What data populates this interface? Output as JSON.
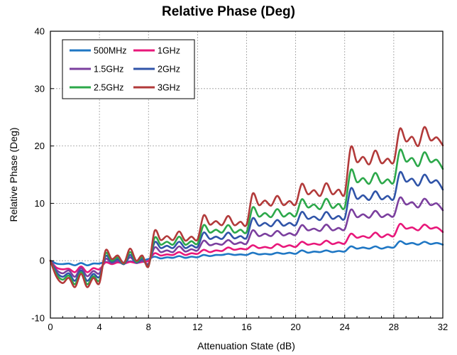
{
  "chart_data": {
    "type": "line",
    "title": "Relative Phase (Deg)",
    "xlabel": "Attenuation State (dB)",
    "ylabel": "Relative Phase (Deg)",
    "xlim": [
      0,
      32
    ],
    "ylim": [
      -10,
      40
    ],
    "xticks": [
      0,
      4,
      8,
      12,
      16,
      20,
      24,
      28,
      32
    ],
    "yticks": [
      -10,
      0,
      10,
      20,
      30,
      40
    ],
    "grid": true,
    "legend_position": "top-left",
    "x": [
      0,
      0.5,
      1,
      1.5,
      2,
      2.5,
      3,
      3.5,
      4,
      4.5,
      5,
      5.5,
      6,
      6.5,
      7,
      7.5,
      8,
      8.5,
      9,
      9.5,
      10,
      10.5,
      11,
      11.5,
      12,
      12.5,
      13,
      13.5,
      14,
      14.5,
      15,
      15.5,
      16,
      16.5,
      17,
      17.5,
      18,
      18.5,
      19,
      19.5,
      20,
      20.5,
      21,
      21.5,
      22,
      22.5,
      23,
      23.5,
      24,
      24.5,
      25,
      25.5,
      26,
      26.5,
      27,
      27.5,
      28,
      28.5,
      29,
      29.5,
      30,
      30.5,
      31,
      31.5,
      32
    ],
    "series": [
      {
        "name": "500MHz",
        "color": "#1f77c4",
        "values": [
          0,
          -0.5,
          -0.6,
          -0.5,
          -0.8,
          -0.4,
          -0.8,
          -0.5,
          -0.5,
          -0.2,
          -0.4,
          -0.2,
          -0.3,
          -0.1,
          -0.2,
          0,
          0.3,
          0.7,
          0.4,
          0.6,
          0.5,
          0.8,
          0.5,
          0.7,
          0.6,
          1.0,
          0.8,
          1.0,
          1.0,
          1.2,
          1.0,
          1.1,
          1.0,
          1.4,
          1.1,
          1.2,
          1.1,
          1.4,
          1.2,
          1.4,
          1.2,
          1.8,
          1.4,
          1.6,
          1.5,
          1.8,
          1.5,
          1.7,
          1.6,
          2.5,
          2.1,
          2.3,
          2.1,
          2.5,
          2.1,
          2.4,
          2.3,
          3.4,
          2.9,
          3.1,
          2.8,
          3.3,
          2.9,
          3.1,
          2.8
        ]
      },
      {
        "name": "1GHz",
        "color": "#e8177a",
        "values": [
          0,
          -1.2,
          -1.5,
          -1.4,
          -2.0,
          -1.0,
          -2.0,
          -1.3,
          -1.5,
          -0.3,
          -0.6,
          -0.3,
          -0.5,
          -0.2,
          -0.4,
          -0.2,
          0,
          1.3,
          0.9,
          1.1,
          1.0,
          1.5,
          1.0,
          1.3,
          1.2,
          1.9,
          1.5,
          1.8,
          1.7,
          2.3,
          1.9,
          2.1,
          2.0,
          2.7,
          2.2,
          2.4,
          2.2,
          2.9,
          2.4,
          2.7,
          2.4,
          3.3,
          2.8,
          3.0,
          2.8,
          3.5,
          2.9,
          3.2,
          3.0,
          4.7,
          4.0,
          4.3,
          4.0,
          4.9,
          4.1,
          4.6,
          4.3,
          6.4,
          5.6,
          5.8,
          5.3,
          6.3,
          5.6,
          5.8,
          5.0
        ]
      },
      {
        "name": "1.5GHz",
        "color": "#7b3f9e",
        "values": [
          0,
          -1.6,
          -2.2,
          -1.7,
          -2.8,
          -1.3,
          -2.7,
          -1.8,
          -2.2,
          0.3,
          -0.4,
          0,
          -0.6,
          0.6,
          -0.4,
          0,
          -0.5,
          2.3,
          1.5,
          1.8,
          1.5,
          2.5,
          1.6,
          2.0,
          1.8,
          3.5,
          2.7,
          3.0,
          2.8,
          3.6,
          2.9,
          3.2,
          3.0,
          5.3,
          4.3,
          4.7,
          4.3,
          5.2,
          4.4,
          4.8,
          4.5,
          6.2,
          5.3,
          5.6,
          5.2,
          6.3,
          5.3,
          5.7,
          5.5,
          8.9,
          7.6,
          8.1,
          7.5,
          8.7,
          7.6,
          8.1,
          7.8,
          11.0,
          9.8,
          10.2,
          9.3,
          10.8,
          9.7,
          10.0,
          8.8
        ]
      },
      {
        "name": "2GHz",
        "color": "#3054a8",
        "values": [
          0,
          -2.0,
          -2.8,
          -2.2,
          -3.5,
          -1.7,
          -3.5,
          -2.3,
          -2.8,
          0.8,
          -0.2,
          0.3,
          -0.6,
          1.0,
          -0.3,
          0.3,
          -0.7,
          3.2,
          2.2,
          2.6,
          2.2,
          3.3,
          2.2,
          2.7,
          2.4,
          4.9,
          3.8,
          4.2,
          3.8,
          4.9,
          3.9,
          4.3,
          4.0,
          7.4,
          6.1,
          6.6,
          6.0,
          7.1,
          6.1,
          6.6,
          6.2,
          8.5,
          7.3,
          7.7,
          7.1,
          8.5,
          7.3,
          7.8,
          7.4,
          12.6,
          10.8,
          11.4,
          10.6,
          12.1,
          10.7,
          11.3,
          10.8,
          15.4,
          13.8,
          14.3,
          13.1,
          15.0,
          13.6,
          14.0,
          12.4
        ]
      },
      {
        "name": "2.5GHz",
        "color": "#2ca84a",
        "values": [
          0,
          -2.4,
          -3.3,
          -2.6,
          -4.1,
          -2.0,
          -4.1,
          -2.7,
          -3.4,
          1.3,
          0,
          0.6,
          -0.5,
          1.5,
          -0.2,
          0.6,
          -0.9,
          4.0,
          2.8,
          3.3,
          2.8,
          4.2,
          2.8,
          3.4,
          3.0,
          6.2,
          4.9,
          5.4,
          4.9,
          6.2,
          4.9,
          5.4,
          5.0,
          9.3,
          7.7,
          8.3,
          7.6,
          9.0,
          7.7,
          8.3,
          7.8,
          10.7,
          9.3,
          9.8,
          9.0,
          10.8,
          9.2,
          9.9,
          9.3,
          15.8,
          13.7,
          14.4,
          13.4,
          15.3,
          13.5,
          14.2,
          13.7,
          19.3,
          17.3,
          17.9,
          16.5,
          18.9,
          17.2,
          17.6,
          16.0
        ]
      },
      {
        "name": "3GHz",
        "color": "#b23a3a",
        "values": [
          0,
          -2.8,
          -3.9,
          -3.0,
          -4.6,
          -2.3,
          -4.6,
          -3.0,
          -3.9,
          1.8,
          0.3,
          0.9,
          -0.4,
          2.1,
          0,
          0.9,
          -1.0,
          5.2,
          3.6,
          4.3,
          3.6,
          5.1,
          3.5,
          4.2,
          3.7,
          7.9,
          6.3,
          6.9,
          6.2,
          7.8,
          6.2,
          6.8,
          6.3,
          11.7,
          9.7,
          10.5,
          9.6,
          11.3,
          9.7,
          10.4,
          9.8,
          13.4,
          11.6,
          12.3,
          11.3,
          13.5,
          11.6,
          12.4,
          11.7,
          19.8,
          17.2,
          18.1,
          16.8,
          19.2,
          17.0,
          17.8,
          17.2,
          23.0,
          20.8,
          21.6,
          20.0,
          23.3,
          21.0,
          21.5,
          20.1
        ]
      }
    ]
  }
}
